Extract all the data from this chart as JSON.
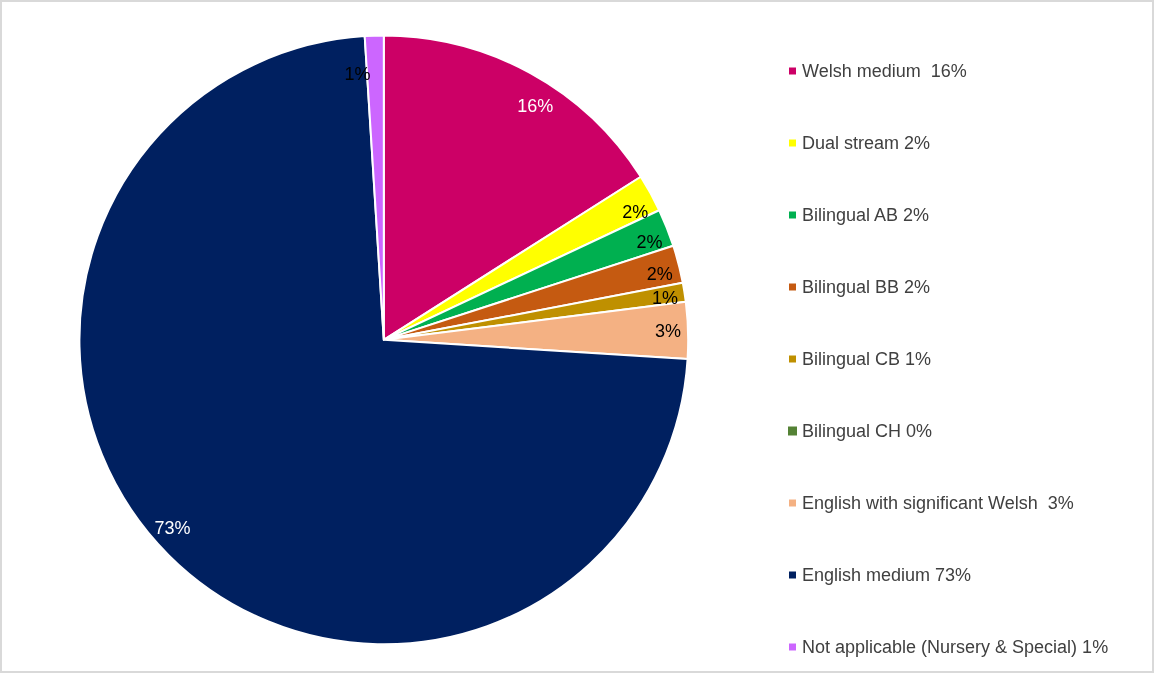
{
  "chart_data": {
    "type": "pie",
    "categories": [
      "Welsh medium  16%",
      "Dual stream 2%",
      "Bilingual AB 2%",
      "Bilingual BB 2%",
      "Bilingual CB 1%",
      "Bilingual CH 0%",
      "English with significant Welsh  3%",
      "English medium 73%",
      "Not applicable (Nursery & Special) 1%"
    ],
    "values": [
      16,
      2,
      2,
      2,
      1,
      0,
      3,
      73,
      1
    ],
    "colors": [
      "#cc0066",
      "#ffff00",
      "#00b050",
      "#c55a11",
      "#bf9000",
      "#548235",
      "#f4b183",
      "#002060",
      "#cc66ff"
    ],
    "value_labels": [
      "16%",
      "2%",
      "2%",
      "2%",
      "1%",
      null,
      "3%",
      "73%",
      "1%"
    ],
    "legend": "right"
  }
}
